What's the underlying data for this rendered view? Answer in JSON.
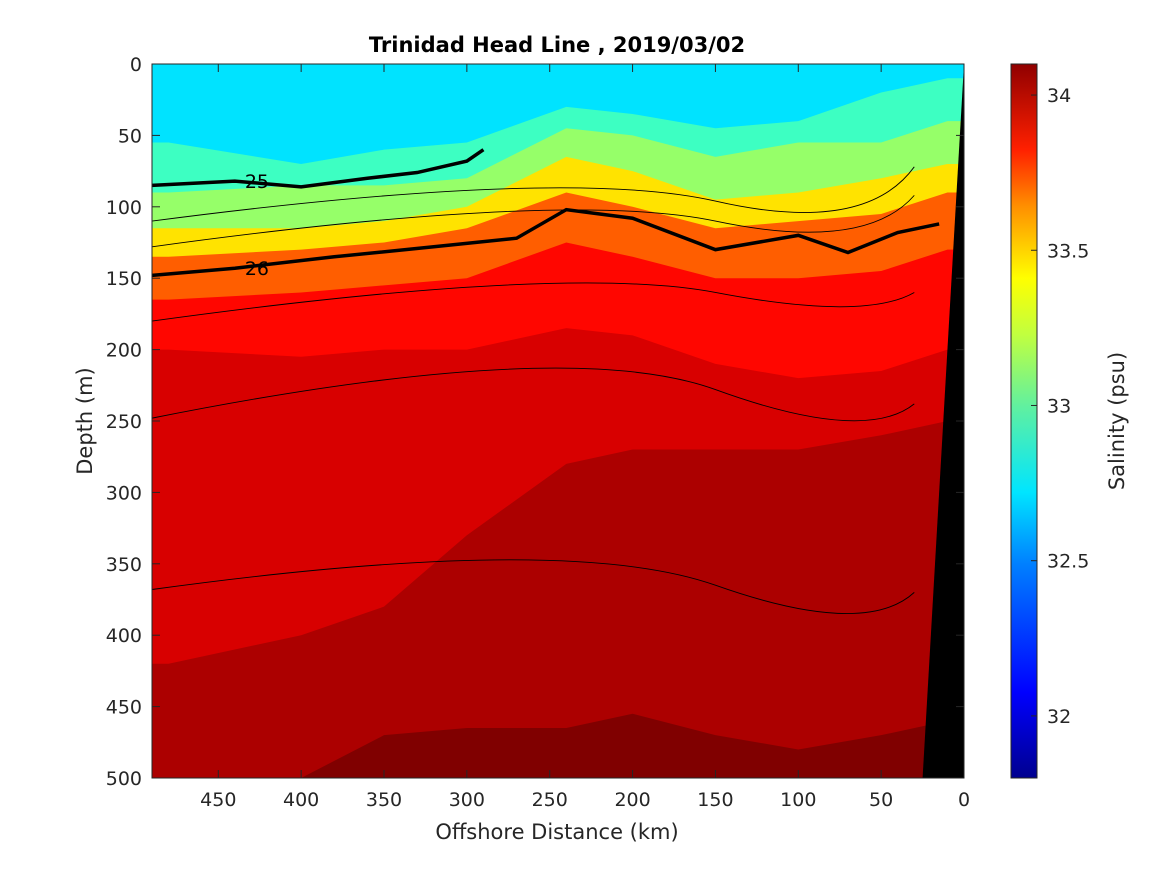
{
  "chart_data": {
    "type": "heatmap",
    "subtype": "filled-contour section",
    "title": "Trinidad Head Line , 2019/03/02",
    "xlabel": "Offshore Distance (km)",
    "ylabel": "Depth (m)",
    "colorbar_label": "Salinity (psu)",
    "xlim": [
      490,
      0
    ],
    "ylim": [
      0,
      500
    ],
    "x_reversed": true,
    "y_reversed": true,
    "xticks": [
      450,
      400,
      350,
      300,
      250,
      200,
      150,
      100,
      50,
      0
    ],
    "yticks": [
      0,
      50,
      100,
      150,
      200,
      250,
      300,
      350,
      400,
      450,
      500
    ],
    "colorbar": {
      "range": [
        31.8,
        34.1
      ],
      "ticks": [
        32,
        32.5,
        33,
        33.5,
        34
      ],
      "colormap": "jet",
      "levels": 23
    },
    "layers": [
      {
        "name": "salinity_fill",
        "x": [
          480,
          400,
          350,
          300,
          240,
          200,
          150,
          100,
          50,
          10
        ],
        "depth_levels": [
          {
            "value": 32.6,
            "depths": [
              0,
              0,
              0,
              0,
              0,
              0,
              0,
              0,
              0,
              0
            ]
          },
          {
            "value": 32.8,
            "depths": [
              55,
              70,
              60,
              55,
              30,
              35,
              45,
              40,
              20,
              10
            ]
          },
          {
            "value": 33.0,
            "depths": [
              90,
              85,
              85,
              80,
              45,
              50,
              65,
              55,
              55,
              40
            ]
          },
          {
            "value": 33.3,
            "depths": [
              115,
              115,
              110,
              100,
              65,
              75,
              95,
              90,
              80,
              70
            ]
          },
          {
            "value": 33.6,
            "depths": [
              135,
              130,
              125,
              115,
              90,
              100,
              115,
              110,
              105,
              90
            ]
          },
          {
            "value": 33.8,
            "depths": [
              165,
              160,
              155,
              150,
              125,
              135,
              150,
              150,
              145,
              130
            ]
          },
          {
            "value": 33.9,
            "depths": [
              200,
              205,
              200,
              200,
              185,
              190,
              210,
              220,
              215,
              200
            ]
          },
          {
            "value": 34.0,
            "depths": [
              420,
              400,
              380,
              330,
              280,
              270,
              270,
              270,
              260,
              250
            ]
          },
          {
            "value": 34.1,
            "depths": [
              500,
              500,
              470,
              465,
              465,
              455,
              470,
              480,
              470,
              460
            ]
          }
        ]
      }
    ],
    "density_contours": [
      {
        "label": "25",
        "bold": true
      },
      {
        "label": "26",
        "bold": true
      }
    ],
    "bathymetry": {
      "color": "#000000",
      "bottom_x_at_500m": 25,
      "surface_x_at_0m": 0
    }
  }
}
